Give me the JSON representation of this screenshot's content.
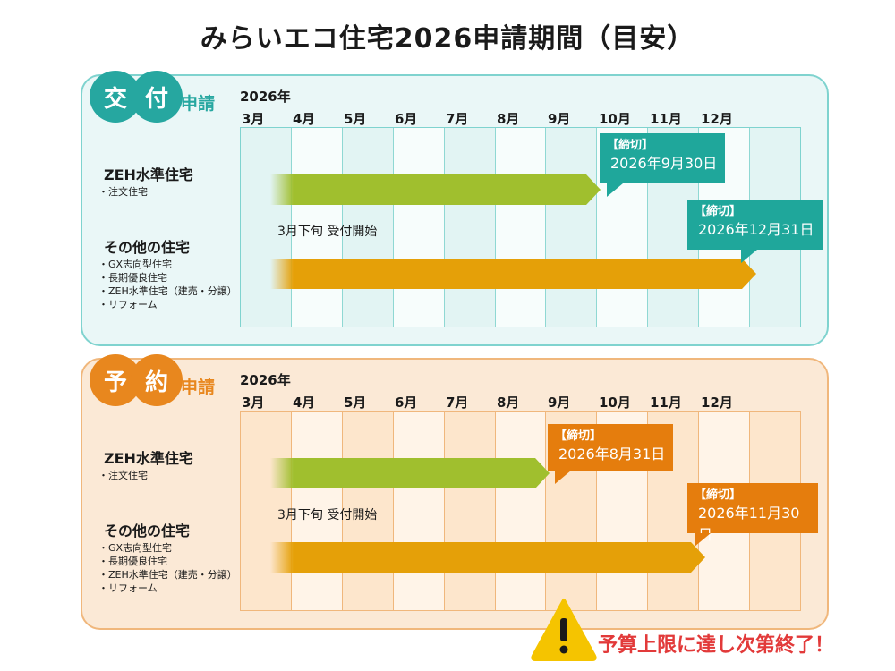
{
  "title": "みらいエコ住宅2026申請期間（目安）",
  "months": [
    "3月",
    "4月",
    "5月",
    "6月",
    "7月",
    "8月",
    "9月",
    "10月",
    "11月",
    "12月"
  ],
  "colors": {
    "kofu": "#26a7a0",
    "yoyaku": "#e8871e",
    "zeh_bar": "#a0bf2e",
    "other_bar": "#e5a008",
    "warning": "#e23a3a"
  },
  "sections": {
    "kofu": {
      "badge": [
        "交",
        "付"
      ],
      "suffix": "申請",
      "year": "2026年",
      "zeh_label": "ZEH水準住宅",
      "zeh_sub": [
        "・注文住宅"
      ],
      "other_label": "その他の住宅",
      "other_sub": [
        "・GX志向型住宅",
        "・長期優良住宅",
        "・ZEH水準住宅（建売・分譲）",
        "・リフォーム"
      ],
      "start_text": "3月下旬 受付開始",
      "zeh_deadline": {
        "tag": "【締切】",
        "date": "2026年9月30日"
      },
      "other_deadline": {
        "tag": "【締切】",
        "date": "2026年12月31日"
      }
    },
    "yoyaku": {
      "badge": [
        "予",
        "約"
      ],
      "suffix": "申請",
      "year": "2026年",
      "zeh_label": "ZEH水準住宅",
      "zeh_sub": [
        "・注文住宅"
      ],
      "other_label": "その他の住宅",
      "other_sub": [
        "・GX志向型住宅",
        "・長期優良住宅",
        "・ZEH水準住宅（建売・分譲）",
        "・リフォーム"
      ],
      "start_text": "3月下旬 受付開始",
      "zeh_deadline": {
        "tag": "【締切】",
        "date": "2026年8月31日"
      },
      "other_deadline": {
        "tag": "【締切】",
        "date": "2026年11月30日"
      }
    }
  },
  "warning": {
    "icon": "warning-triangle-icon",
    "text": "予算上限に達し次第終了！"
  }
}
